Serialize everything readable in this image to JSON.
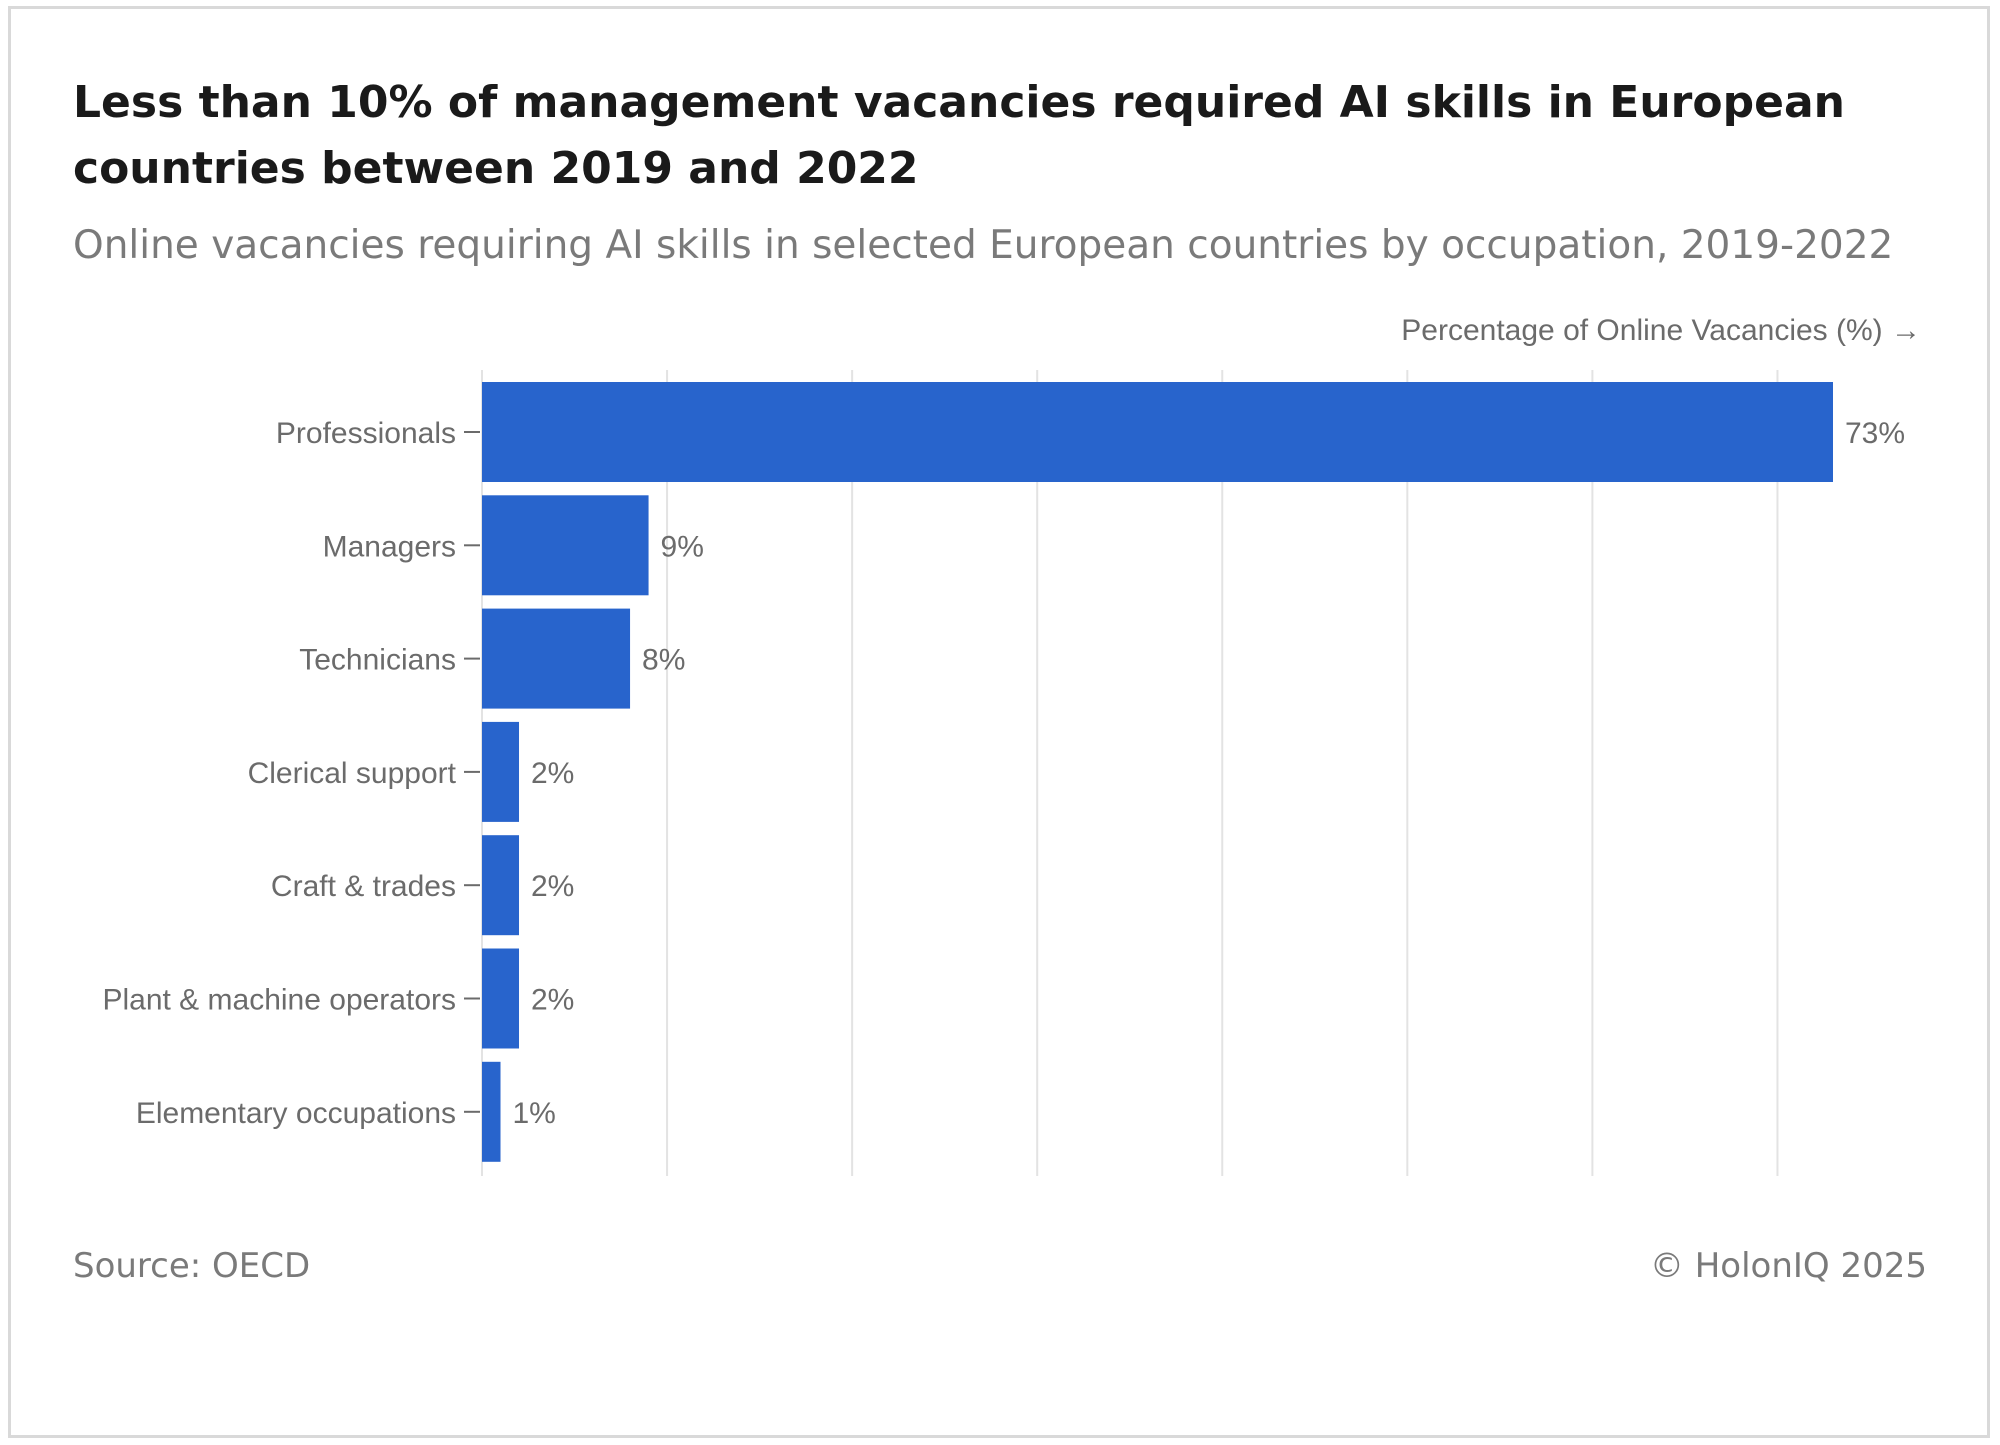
{
  "title": "Less than 10% of management vacancies required AI skills in European countries between 2019 and 2022",
  "subtitle": "Online vacancies requiring AI skills in selected European countries by occupation, 2019-2022",
  "source": "Source: OECD",
  "copyright": "© HolonIQ 2025",
  "colors": {
    "bar": "#2864cc",
    "grid": "#e3e3e3",
    "label": "#6b6b6b"
  },
  "chart_data": {
    "type": "bar",
    "orientation": "horizontal",
    "xlabel": "Percentage of Online Vacancies (%) →",
    "ylabel": "",
    "xlim": [
      0,
      80
    ],
    "grid": true,
    "categories": [
      "Professionals",
      "Managers",
      "Technicians",
      "Clerical support",
      "Craft & trades",
      "Plant & machine operators",
      "Elementary occupations"
    ],
    "values": [
      73,
      9,
      8,
      2,
      2,
      2,
      1
    ],
    "data_labels": [
      "73%",
      "9%",
      "8%",
      "2%",
      "2%",
      "2%",
      "1%"
    ]
  }
}
